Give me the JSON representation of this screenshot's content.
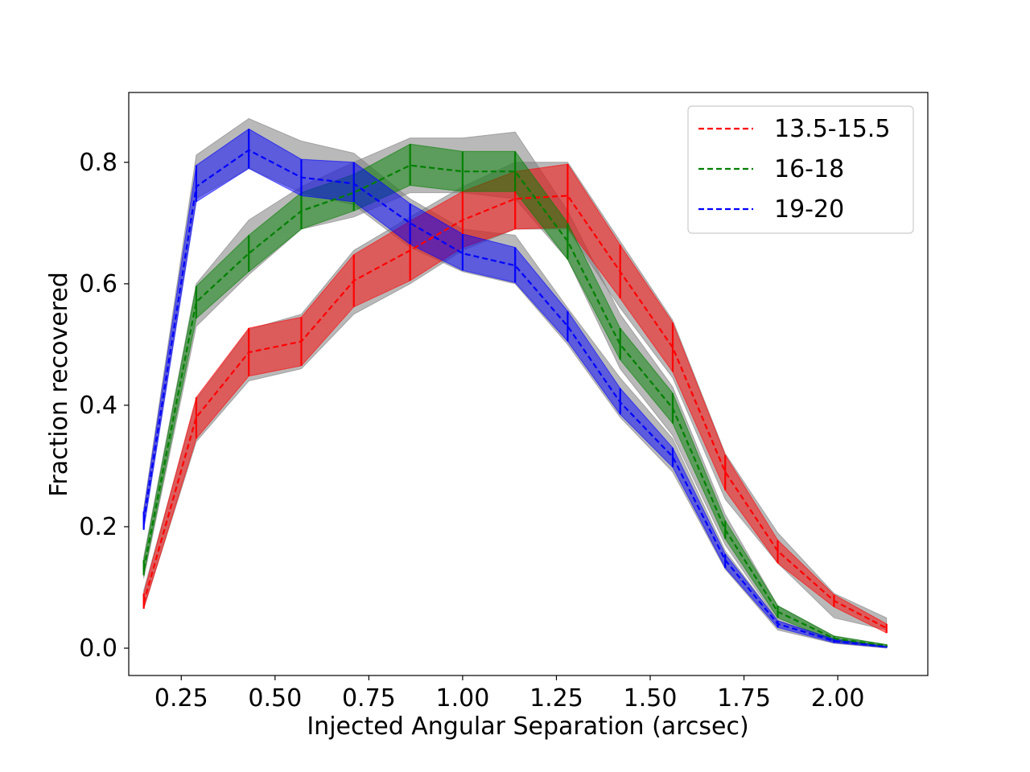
{
  "chart_data": {
    "type": "line",
    "title": "",
    "xlabel": "Injected Angular Separation (arcsec)",
    "ylabel": "Fraction recovered",
    "xlim": [
      0.11,
      2.24
    ],
    "ylim": [
      -0.045,
      0.915
    ],
    "xticks": [
      "0.25",
      "0.50",
      "0.75",
      "1.00",
      "1.25",
      "1.50",
      "1.75",
      "2.00"
    ],
    "yticks": [
      "0.0",
      "0.2",
      "0.4",
      "0.6",
      "0.8"
    ],
    "grid": false,
    "legend_position": "top-right",
    "x": [
      0.15,
      0.29,
      0.43,
      0.57,
      0.71,
      0.86,
      1.0,
      1.14,
      1.28,
      1.42,
      1.56,
      1.7,
      1.84,
      1.99,
      2.13
    ],
    "series": [
      {
        "name": "13.5-15.5",
        "color": "#ff0000",
        "values": [
          0.075,
          0.38,
          0.487,
          0.505,
          0.605,
          0.655,
          0.705,
          0.74,
          0.745,
          0.62,
          0.495,
          0.29,
          0.16,
          0.078,
          0.033
        ],
        "band_low": [
          0.065,
          0.345,
          0.448,
          0.465,
          0.562,
          0.605,
          0.66,
          0.69,
          0.693,
          0.576,
          0.455,
          0.26,
          0.14,
          0.068,
          0.025
        ],
        "band_high": [
          0.09,
          0.413,
          0.527,
          0.545,
          0.648,
          0.703,
          0.752,
          0.785,
          0.797,
          0.664,
          0.536,
          0.318,
          0.178,
          0.088,
          0.04
        ],
        "gray_low": [
          0.065,
          0.34,
          0.44,
          0.46,
          0.55,
          0.6,
          0.655,
          0.69,
          0.69,
          0.56,
          0.445,
          0.245,
          0.14,
          0.05,
          0.03
        ],
        "gray_high": [
          0.095,
          0.41,
          0.525,
          0.55,
          0.655,
          0.71,
          0.76,
          0.8,
          0.8,
          0.67,
          0.54,
          0.32,
          0.19,
          0.09,
          0.05
        ]
      },
      {
        "name": "16-18",
        "color": "#008000",
        "values": [
          0.13,
          0.57,
          0.65,
          0.72,
          0.75,
          0.795,
          0.785,
          0.785,
          0.67,
          0.5,
          0.395,
          0.195,
          0.06,
          0.016,
          0.004
        ],
        "band_low": [
          0.12,
          0.543,
          0.62,
          0.69,
          0.72,
          0.762,
          0.752,
          0.752,
          0.64,
          0.475,
          0.37,
          0.18,
          0.05,
          0.012,
          0.002
        ],
        "band_high": [
          0.145,
          0.596,
          0.68,
          0.75,
          0.78,
          0.83,
          0.818,
          0.818,
          0.7,
          0.527,
          0.42,
          0.21,
          0.07,
          0.02,
          0.006
        ],
        "gray_low": [
          0.115,
          0.53,
          0.615,
          0.69,
          0.71,
          0.75,
          0.75,
          0.74,
          0.64,
          0.46,
          0.35,
          0.17,
          0.045,
          0.01,
          0.002
        ],
        "gray_high": [
          0.15,
          0.6,
          0.705,
          0.76,
          0.8,
          0.84,
          0.84,
          0.85,
          0.72,
          0.55,
          0.43,
          0.22,
          0.07,
          0.02,
          0.006
        ]
      },
      {
        "name": "19-20",
        "color": "#0000ff",
        "values": [
          0.21,
          0.76,
          0.82,
          0.775,
          0.765,
          0.7,
          0.65,
          0.63,
          0.53,
          0.405,
          0.315,
          0.145,
          0.04,
          0.012,
          0.002
        ],
        "band_low": [
          0.195,
          0.735,
          0.79,
          0.745,
          0.735,
          0.665,
          0.622,
          0.602,
          0.505,
          0.385,
          0.298,
          0.132,
          0.034,
          0.009,
          0.001
        ],
        "band_high": [
          0.225,
          0.795,
          0.855,
          0.805,
          0.8,
          0.732,
          0.682,
          0.66,
          0.555,
          0.428,
          0.33,
          0.155,
          0.045,
          0.015,
          0.003
        ],
        "gray_low": [
          0.2,
          0.74,
          0.79,
          0.75,
          0.73,
          0.66,
          0.62,
          0.6,
          0.5,
          0.38,
          0.29,
          0.13,
          0.03,
          0.008,
          0.0
        ],
        "gray_high": [
          0.23,
          0.812,
          0.872,
          0.835,
          0.815,
          0.74,
          0.69,
          0.68,
          0.56,
          0.445,
          0.345,
          0.16,
          0.045,
          0.015,
          0.003
        ]
      }
    ]
  }
}
